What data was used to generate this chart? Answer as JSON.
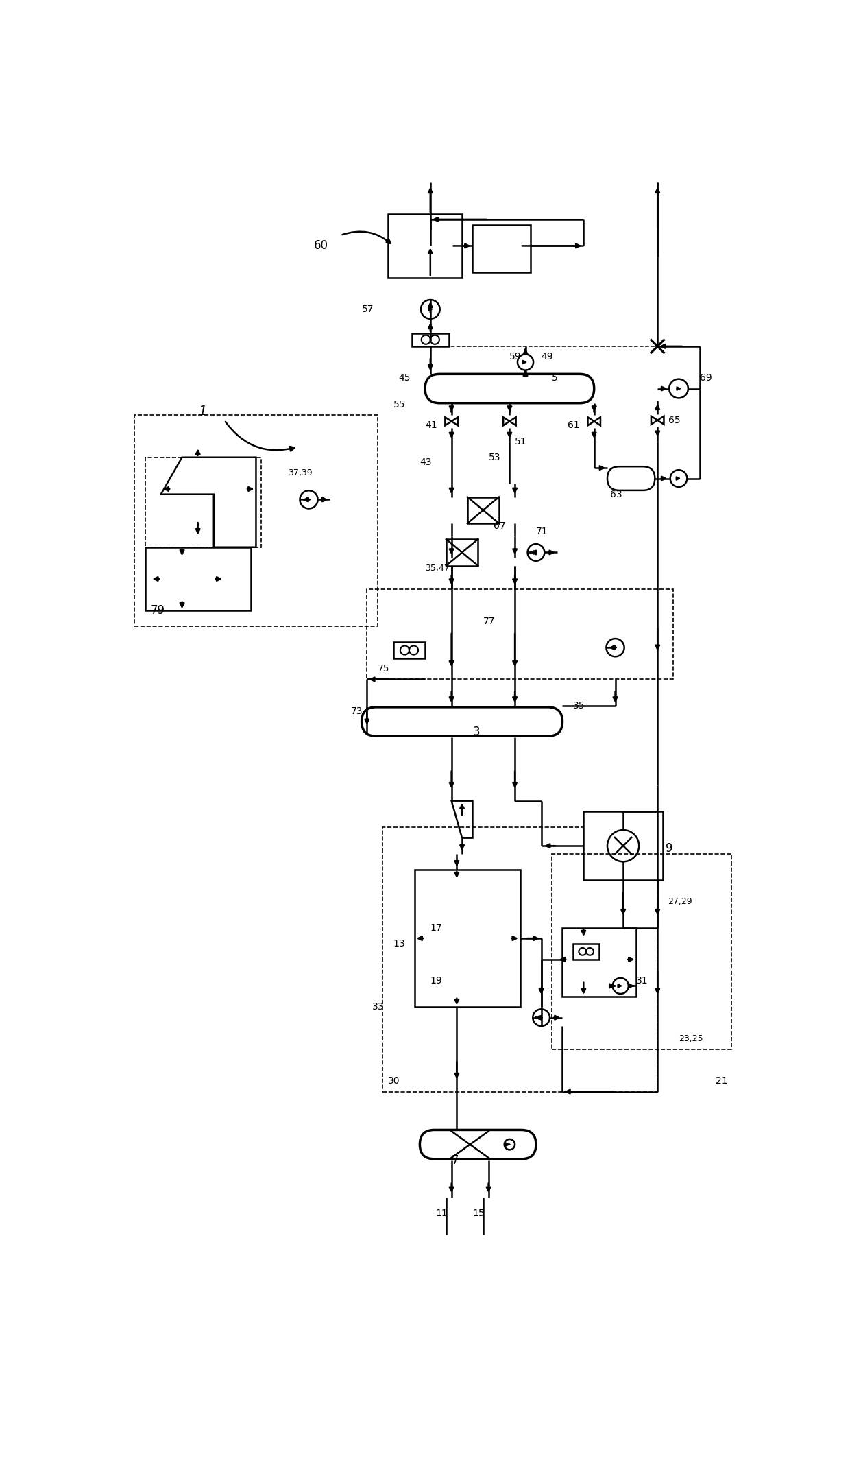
{
  "bg": "#ffffff",
  "lc": "#000000",
  "lw": 1.8,
  "lw_thick": 2.5,
  "lw_thin": 1.0,
  "fig_w": 12.4,
  "fig_h": 21.52,
  "xmax": 124,
  "ymax": 215
}
